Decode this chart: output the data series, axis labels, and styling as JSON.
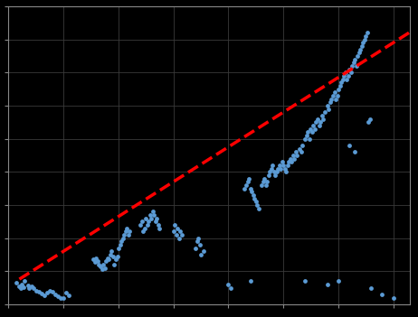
{
  "background_color": "#000000",
  "scatter_color": "#5B9BD5",
  "line_color": "#FF0000",
  "xlim": [
    0,
    730
  ],
  "ylim": [
    0,
    9000
  ],
  "grid_color": "#3a3a3a",
  "scatter_points": [
    [
      15,
      650
    ],
    [
      20,
      550
    ],
    [
      22,
      480
    ],
    [
      25,
      600
    ],
    [
      28,
      520
    ],
    [
      30,
      700
    ],
    [
      35,
      580
    ],
    [
      38,
      500
    ],
    [
      42,
      550
    ],
    [
      45,
      480
    ],
    [
      50,
      420
    ],
    [
      55,
      380
    ],
    [
      60,
      330
    ],
    [
      65,
      280
    ],
    [
      70,
      350
    ],
    [
      75,
      420
    ],
    [
      80,
      380
    ],
    [
      85,
      300
    ],
    [
      90,
      250
    ],
    [
      95,
      200
    ],
    [
      100,
      180
    ],
    [
      105,
      350
    ],
    [
      110,
      280
    ],
    [
      155,
      1350
    ],
    [
      158,
      1280
    ],
    [
      160,
      1400
    ],
    [
      163,
      1300
    ],
    [
      165,
      1200
    ],
    [
      168,
      1150
    ],
    [
      170,
      1050
    ],
    [
      172,
      1200
    ],
    [
      175,
      1100
    ],
    [
      178,
      1300
    ],
    [
      180,
      1400
    ],
    [
      183,
      1350
    ],
    [
      185,
      1500
    ],
    [
      188,
      1600
    ],
    [
      190,
      1450
    ],
    [
      193,
      1200
    ],
    [
      195,
      1350
    ],
    [
      198,
      1450
    ],
    [
      200,
      1700
    ],
    [
      203,
      1800
    ],
    [
      205,
      1900
    ],
    [
      208,
      2000
    ],
    [
      210,
      2100
    ],
    [
      213,
      2200
    ],
    [
      215,
      2300
    ],
    [
      218,
      2100
    ],
    [
      220,
      2200
    ],
    [
      240,
      2400
    ],
    [
      243,
      2500
    ],
    [
      245,
      2200
    ],
    [
      248,
      2300
    ],
    [
      250,
      2600
    ],
    [
      253,
      2400
    ],
    [
      255,
      2500
    ],
    [
      258,
      2700
    ],
    [
      260,
      2600
    ],
    [
      263,
      2800
    ],
    [
      265,
      2700
    ],
    [
      268,
      2500
    ],
    [
      270,
      2600
    ],
    [
      273,
      2400
    ],
    [
      275,
      2300
    ],
    [
      300,
      2200
    ],
    [
      303,
      2400
    ],
    [
      305,
      2100
    ],
    [
      308,
      2300
    ],
    [
      310,
      2000
    ],
    [
      313,
      2200
    ],
    [
      315,
      2100
    ],
    [
      340,
      1700
    ],
    [
      343,
      1900
    ],
    [
      345,
      2000
    ],
    [
      348,
      1800
    ],
    [
      350,
      1500
    ],
    [
      355,
      1600
    ],
    [
      400,
      600
    ],
    [
      405,
      500
    ],
    [
      430,
      3500
    ],
    [
      433,
      3600
    ],
    [
      435,
      3700
    ],
    [
      438,
      3800
    ],
    [
      440,
      3500
    ],
    [
      443,
      3400
    ],
    [
      445,
      3300
    ],
    [
      448,
      3200
    ],
    [
      450,
      3100
    ],
    [
      453,
      3000
    ],
    [
      455,
      2900
    ],
    [
      460,
      3600
    ],
    [
      463,
      3700
    ],
    [
      465,
      3800
    ],
    [
      468,
      3600
    ],
    [
      470,
      3700
    ],
    [
      473,
      3900
    ],
    [
      475,
      4000
    ],
    [
      478,
      4100
    ],
    [
      480,
      4200
    ],
    [
      483,
      4000
    ],
    [
      485,
      3900
    ],
    [
      488,
      4000
    ],
    [
      490,
      4100
    ],
    [
      493,
      4200
    ],
    [
      495,
      4100
    ],
    [
      498,
      4300
    ],
    [
      500,
      4200
    ],
    [
      503,
      4100
    ],
    [
      505,
      4000
    ],
    [
      508,
      4200
    ],
    [
      510,
      4300
    ],
    [
      513,
      4400
    ],
    [
      515,
      4300
    ],
    [
      518,
      4500
    ],
    [
      520,
      4400
    ],
    [
      523,
      4600
    ],
    [
      525,
      4500
    ],
    [
      530,
      4700
    ],
    [
      533,
      4600
    ],
    [
      535,
      4800
    ],
    [
      540,
      5000
    ],
    [
      543,
      5100
    ],
    [
      545,
      5200
    ],
    [
      548,
      5000
    ],
    [
      550,
      5300
    ],
    [
      553,
      5200
    ],
    [
      555,
      5400
    ],
    [
      558,
      5300
    ],
    [
      560,
      5500
    ],
    [
      563,
      5600
    ],
    [
      565,
      5400
    ],
    [
      568,
      5500
    ],
    [
      570,
      5700
    ],
    [
      573,
      5600
    ],
    [
      575,
      5800
    ],
    [
      580,
      6000
    ],
    [
      583,
      5900
    ],
    [
      585,
      6100
    ],
    [
      588,
      6200
    ],
    [
      590,
      6300
    ],
    [
      593,
      6400
    ],
    [
      595,
      6200
    ],
    [
      598,
      6300
    ],
    [
      600,
      6500
    ],
    [
      603,
      6600
    ],
    [
      605,
      6700
    ],
    [
      608,
      6800
    ],
    [
      610,
      6900
    ],
    [
      613,
      7000
    ],
    [
      615,
      6800
    ],
    [
      618,
      6900
    ],
    [
      620,
      7100
    ],
    [
      623,
      7000
    ],
    [
      625,
      7200
    ],
    [
      628,
      7300
    ],
    [
      630,
      7400
    ],
    [
      633,
      7200
    ],
    [
      635,
      7500
    ],
    [
      638,
      7600
    ],
    [
      640,
      7700
    ],
    [
      643,
      7800
    ],
    [
      645,
      7900
    ],
    [
      648,
      8000
    ],
    [
      650,
      8100
    ],
    [
      653,
      8200
    ],
    [
      655,
      5500
    ],
    [
      658,
      5600
    ],
    [
      620,
      4800
    ],
    [
      630,
      4600
    ],
    [
      540,
      700
    ],
    [
      600,
      700
    ],
    [
      660,
      500
    ],
    [
      680,
      300
    ],
    [
      700,
      200
    ],
    [
      580,
      600
    ],
    [
      440,
      700
    ]
  ],
  "line_x": [
    20,
    730
  ],
  "line_y_intercept": 550,
  "line_slope": 10.5,
  "xticks": [
    0,
    100,
    200,
    300,
    400,
    500,
    600,
    700
  ],
  "yticks": [
    0,
    1000,
    2000,
    3000,
    4000,
    5000,
    6000,
    7000,
    8000,
    9000
  ],
  "axis_color": "#888888",
  "tick_color": "#888888"
}
